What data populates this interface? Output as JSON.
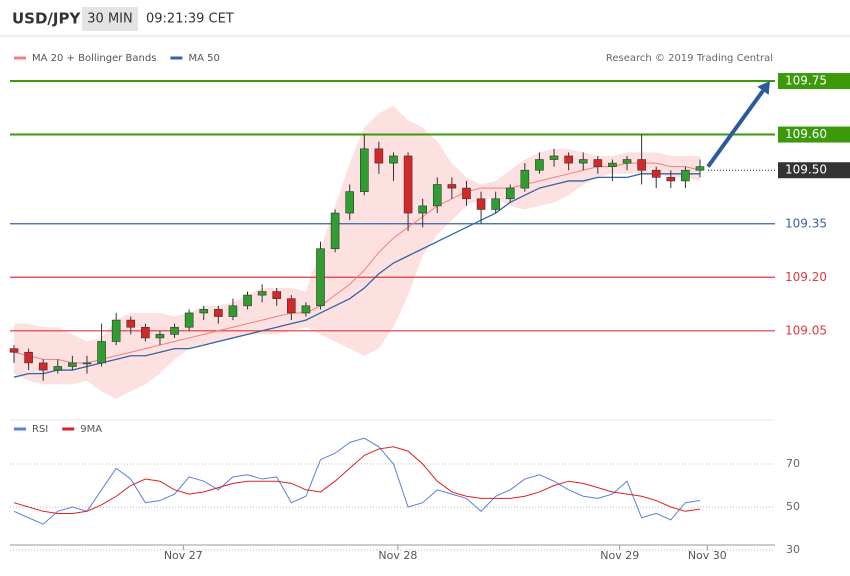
{
  "chart_data": {
    "type": "candlestick",
    "symbol": "USD/JPY",
    "interval": "30 MIN",
    "time": "09:21:39 CET",
    "credit": "Research © 2019 Trading Central",
    "up_color": "#2f9e2f",
    "down_color": "#d62728",
    "ylim": [
      108.8,
      109.865
    ],
    "xlim": [
      0,
      47
    ],
    "xticks": [
      {
        "value": 11.6,
        "label": "Nov 27"
      },
      {
        "value": 26.3,
        "label": "Nov 28"
      },
      {
        "value": 41.5,
        "label": "Nov 29"
      },
      {
        "value": 47.5,
        "label": "Nov 30"
      }
    ],
    "candles": [
      [
        109.0,
        109.01,
        108.96,
        108.99
      ],
      [
        108.99,
        109.0,
        108.94,
        108.96
      ],
      [
        108.96,
        108.97,
        108.91,
        108.94
      ],
      [
        108.94,
        108.97,
        108.93,
        108.95
      ],
      [
        108.95,
        108.98,
        108.94,
        108.96
      ],
      [
        108.96,
        108.98,
        108.93,
        108.96
      ],
      [
        108.96,
        109.07,
        108.95,
        109.02
      ],
      [
        109.02,
        109.1,
        109.01,
        109.08
      ],
      [
        109.08,
        109.09,
        109.04,
        109.06
      ],
      [
        109.06,
        109.07,
        109.02,
        109.03
      ],
      [
        109.03,
        109.05,
        109.01,
        109.04
      ],
      [
        109.04,
        109.07,
        109.03,
        109.06
      ],
      [
        109.06,
        109.11,
        109.05,
        109.1
      ],
      [
        109.1,
        109.12,
        109.08,
        109.11
      ],
      [
        109.11,
        109.12,
        109.07,
        109.09
      ],
      [
        109.09,
        109.14,
        109.08,
        109.12
      ],
      [
        109.12,
        109.16,
        109.11,
        109.15
      ],
      [
        109.15,
        109.18,
        109.13,
        109.16
      ],
      [
        109.16,
        109.17,
        109.12,
        109.14
      ],
      [
        109.14,
        109.15,
        109.08,
        109.1
      ],
      [
        109.1,
        109.13,
        109.09,
        109.12
      ],
      [
        109.12,
        109.3,
        109.11,
        109.28
      ],
      [
        109.28,
        109.39,
        109.27,
        109.38
      ],
      [
        109.38,
        109.46,
        109.36,
        109.44
      ],
      [
        109.44,
        109.6,
        109.43,
        109.56
      ],
      [
        109.56,
        109.58,
        109.49,
        109.52
      ],
      [
        109.52,
        109.55,
        109.47,
        109.54
      ],
      [
        109.54,
        109.55,
        109.33,
        109.38
      ],
      [
        109.38,
        109.42,
        109.34,
        109.4
      ],
      [
        109.4,
        109.48,
        109.38,
        109.46
      ],
      [
        109.46,
        109.48,
        109.42,
        109.45
      ],
      [
        109.45,
        109.47,
        109.4,
        109.42
      ],
      [
        109.42,
        109.44,
        109.35,
        109.39
      ],
      [
        109.39,
        109.44,
        109.38,
        109.42
      ],
      [
        109.42,
        109.46,
        109.41,
        109.45
      ],
      [
        109.45,
        109.52,
        109.44,
        109.5
      ],
      [
        109.5,
        109.55,
        109.49,
        109.53
      ],
      [
        109.53,
        109.56,
        109.51,
        109.54
      ],
      [
        109.54,
        109.55,
        109.5,
        109.52
      ],
      [
        109.52,
        109.55,
        109.5,
        109.53
      ],
      [
        109.53,
        109.54,
        109.49,
        109.51
      ],
      [
        109.51,
        109.53,
        109.47,
        109.52
      ],
      [
        109.52,
        109.54,
        109.5,
        109.53
      ],
      [
        109.53,
        109.6,
        109.46,
        109.5
      ],
      [
        109.5,
        109.51,
        109.45,
        109.48
      ],
      [
        109.48,
        109.5,
        109.45,
        109.47
      ],
      [
        109.47,
        109.51,
        109.45,
        109.5
      ],
      [
        109.5,
        109.53,
        109.48,
        109.51
      ]
    ],
    "series": [
      {
        "name": "MA 20 + Bollinger Bands",
        "color": "#f08080",
        "band_color": "#fde0e0",
        "values": [
          108.99,
          108.98,
          108.97,
          108.97,
          108.96,
          108.96,
          108.97,
          108.98,
          108.99,
          109.0,
          109.01,
          109.02,
          109.03,
          109.04,
          109.05,
          109.06,
          109.07,
          109.08,
          109.09,
          109.1,
          109.1,
          109.12,
          109.15,
          109.18,
          109.22,
          109.27,
          109.31,
          109.34,
          109.37,
          109.4,
          109.42,
          109.44,
          109.45,
          109.45,
          109.45,
          109.46,
          109.47,
          109.48,
          109.49,
          109.5,
          109.51,
          109.51,
          109.52,
          109.52,
          109.52,
          109.51,
          109.51,
          109.5
        ],
        "upper": [
          109.07,
          109.07,
          109.06,
          109.06,
          109.04,
          109.02,
          109.03,
          109.08,
          109.1,
          109.1,
          109.1,
          109.09,
          109.1,
          109.12,
          109.12,
          109.13,
          109.15,
          109.17,
          109.17,
          109.17,
          109.16,
          109.28,
          109.4,
          109.52,
          109.62,
          109.66,
          109.68,
          109.64,
          109.62,
          109.58,
          109.52,
          109.48,
          109.46,
          109.47,
          109.5,
          109.53,
          109.55,
          109.56,
          109.56,
          109.55,
          109.54,
          109.54,
          109.55,
          109.55,
          109.55,
          109.54,
          109.54,
          109.54
        ],
        "lower": [
          108.93,
          108.91,
          108.9,
          108.9,
          108.9,
          108.91,
          108.88,
          108.86,
          108.88,
          108.9,
          108.93,
          108.97,
          109.0,
          109.01,
          109.02,
          109.03,
          109.04,
          109.04,
          109.04,
          109.05,
          109.06,
          109.04,
          109.02,
          109.0,
          108.98,
          109.0,
          109.06,
          109.15,
          109.26,
          109.32,
          109.36,
          109.4,
          109.42,
          109.42,
          109.4,
          109.39,
          109.4,
          109.41,
          109.43,
          109.46,
          109.48,
          109.49,
          109.49,
          109.49,
          109.49,
          109.48,
          109.48,
          109.47
        ]
      },
      {
        "name": "MA 50",
        "color": "#3465a4",
        "values": [
          108.92,
          108.93,
          108.93,
          108.94,
          108.94,
          108.95,
          108.96,
          108.97,
          108.98,
          108.98,
          108.99,
          109.0,
          109.0,
          109.01,
          109.02,
          109.03,
          109.04,
          109.05,
          109.06,
          109.07,
          109.08,
          109.1,
          109.12,
          109.14,
          109.17,
          109.21,
          109.24,
          109.26,
          109.28,
          109.3,
          109.32,
          109.34,
          109.36,
          109.38,
          109.41,
          109.43,
          109.45,
          109.46,
          109.47,
          109.47,
          109.48,
          109.48,
          109.48,
          109.49,
          109.49,
          109.49,
          109.49,
          109.49
        ]
      }
    ],
    "levels": [
      {
        "value": 109.75,
        "label": "109.75",
        "color": "#3a9a0a",
        "style": "solid",
        "boxed": true
      },
      {
        "value": 109.6,
        "label": "109.60",
        "color": "#3a9a0a",
        "style": "solid",
        "boxed": true
      },
      {
        "value": 109.5,
        "label": "109.50",
        "color": "#333333",
        "style": "dotted",
        "boxed": true
      },
      {
        "value": 109.35,
        "label": "109.35",
        "color": "#3465a4",
        "style": "solid",
        "boxed": false
      },
      {
        "value": 109.2,
        "label": "109.20",
        "color": "#e0393e",
        "style": "solid",
        "boxed": false
      },
      {
        "value": 109.05,
        "label": "109.05",
        "color": "#e0393e",
        "style": "solid",
        "boxed": false
      }
    ],
    "arrow_color": "#2a5c9a",
    "rsi": {
      "ylim": [
        25,
        87
      ],
      "yticks": [
        30,
        50,
        70
      ],
      "series": [
        {
          "name": "RSI",
          "color": "#5b7fde",
          "values": [
            48,
            45,
            42,
            48,
            50,
            48,
            58,
            68,
            63,
            52,
            53,
            56,
            64,
            62,
            58,
            64,
            65,
            63,
            64,
            52,
            55,
            72,
            75,
            80,
            82,
            78,
            70,
            50,
            52,
            58,
            56,
            54,
            48,
            55,
            58,
            63,
            65,
            62,
            58,
            55,
            54,
            56,
            62,
            45,
            47,
            44,
            52,
            53
          ]
        },
        {
          "name": "9MA",
          "color": "#e02020",
          "values": [
            52,
            50,
            48,
            47,
            47,
            48,
            51,
            55,
            60,
            63,
            62,
            58,
            56,
            57,
            59,
            61,
            62,
            62,
            62,
            61,
            58,
            57,
            62,
            68,
            74,
            77,
            78,
            76,
            70,
            62,
            57,
            55,
            54,
            54,
            54,
            55,
            57,
            60,
            62,
            61,
            59,
            57,
            56,
            55,
            53,
            50,
            48,
            49
          ]
        }
      ]
    }
  }
}
